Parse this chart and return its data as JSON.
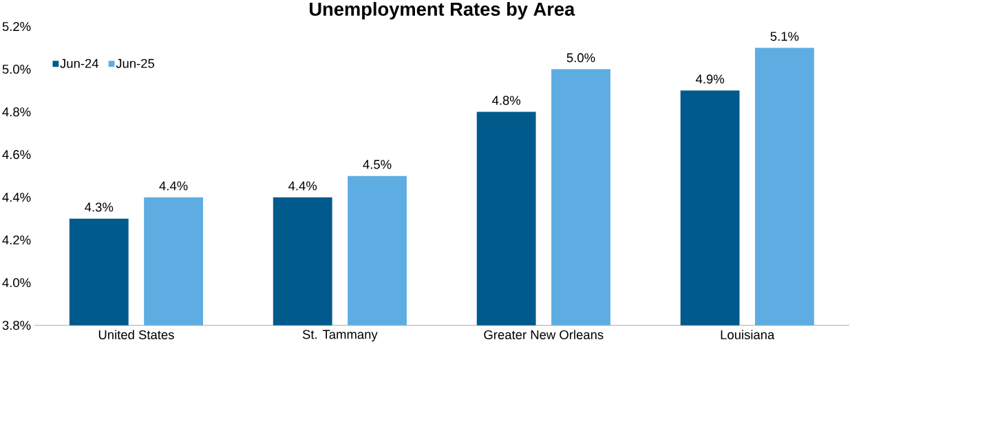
{
  "chart_data": {
    "type": "bar",
    "title": "Unemployment Rates by Area",
    "categories": [
      "United States",
      "St. Tammany",
      "Greater New Orleans",
      "Louisiana"
    ],
    "series": [
      {
        "name": "Jun-24",
        "color": "#005a8c",
        "values": [
          4.3,
          4.4,
          4.8,
          4.9
        ],
        "value_labels": [
          "4.3%",
          "4.4%",
          "4.8%",
          "4.9%"
        ]
      },
      {
        "name": "Jun-25",
        "color": "#5dade2",
        "values": [
          4.4,
          4.5,
          5.0,
          5.1
        ],
        "value_labels": [
          "4.4%",
          "4.5%",
          "5.0%",
          "5.1%"
        ]
      }
    ],
    "ylim": [
      3.8,
      5.2
    ],
    "yticks": [
      {
        "value": 3.8,
        "label": "3.8%"
      },
      {
        "value": 4.0,
        "label": "4.0%"
      },
      {
        "value": 4.2,
        "label": "4.2%"
      },
      {
        "value": 4.4,
        "label": "4.4%"
      },
      {
        "value": 4.6,
        "label": "4.6%"
      },
      {
        "value": 4.8,
        "label": "4.8%"
      },
      {
        "value": 5.0,
        "label": "5.0%"
      },
      {
        "value": 5.2,
        "label": "5.2%"
      }
    ],
    "legend": "top left",
    "grid": false
  }
}
